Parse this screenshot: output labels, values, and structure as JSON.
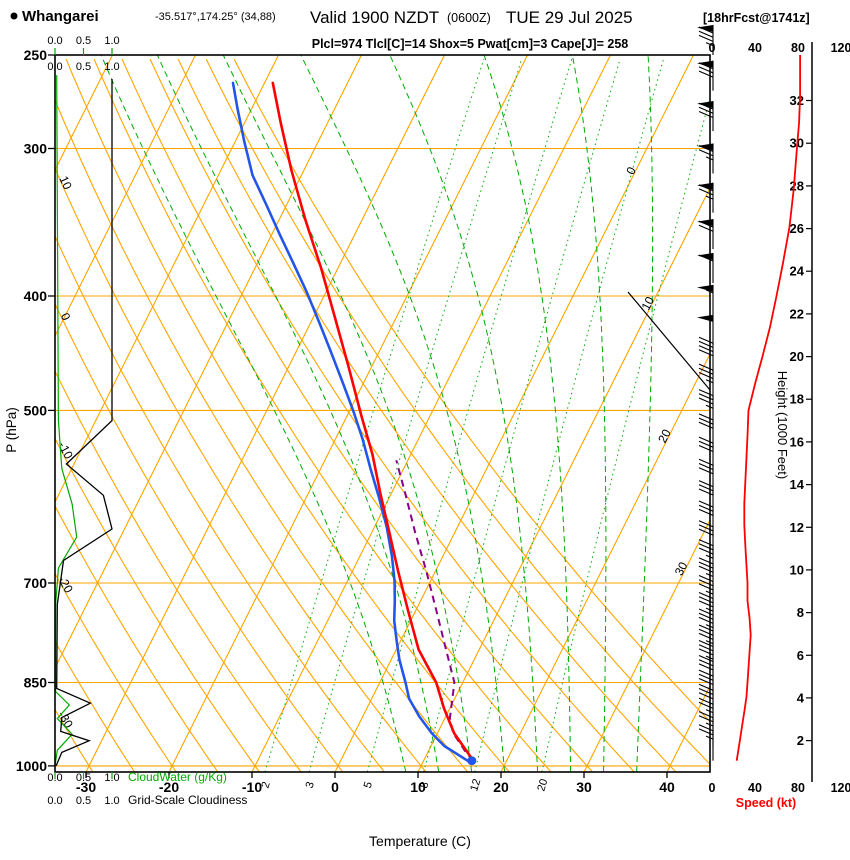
{
  "header": {
    "station": "Whangarei",
    "coords": "-35.517°,174.25° (34,88)",
    "valid_main": "Valid 1900 NZDT",
    "valid_zulu": "(0600Z)",
    "valid_date": "TUE 29 Jul 2025",
    "fcst_tag": "[18hrFcst@1741z]",
    "params_line": "Plcl=974 Tlcl[C]=14 Shox=5 Pwat[cm]=3 Cape[J]= 258"
  },
  "axes": {
    "pressure_label": "P (hPa)",
    "pressure_ticks": [
      250,
      300,
      400,
      500,
      700,
      850,
      1000
    ],
    "temp_label": "Temperature (C)",
    "temp_ticks": [
      -30,
      -20,
      -10,
      0,
      10,
      20,
      30,
      40
    ],
    "height_label": "Height (1000 Feet)",
    "height_ticks": [
      2,
      4,
      6,
      8,
      10,
      12,
      14,
      16,
      18,
      20,
      22,
      24,
      26,
      28,
      30,
      32
    ],
    "speed_label": "Speed (kt)",
    "speed_ticks": [
      0,
      40,
      80,
      120
    ],
    "cloudwater_label": "CloudWater (g/Kg)",
    "cloudiness_label": "Grid-Scale Cloudiness",
    "cloud_scale_ticks": [
      "0.0",
      "0.5",
      "1.0"
    ]
  },
  "chart_data": {
    "type": "skewt-logp-sounding",
    "pressure_range_hpa": [
      250,
      1012
    ],
    "temp_axis_range_c": [
      -33,
      45
    ],
    "isobars": [
      300,
      400,
      500,
      700,
      850,
      1000
    ],
    "isotherms": {
      "values": [
        -70,
        -60,
        -50,
        -40,
        -30,
        -20,
        -10,
        0,
        10,
        20,
        30,
        40
      ],
      "labeled": [
        0,
        10,
        20,
        30
      ]
    },
    "dry_adiabats": {
      "values": [
        -30,
        -25,
        -20,
        -15,
        -10,
        -5,
        0,
        5,
        10,
        15,
        20,
        25,
        30,
        35,
        40,
        45,
        50
      ],
      "labeled": [
        10,
        0,
        -10,
        -20,
        -30
      ]
    },
    "moist_adiabats": {
      "values": [
        8,
        12,
        16,
        20,
        24,
        28,
        32,
        36
      ]
    },
    "mixing_ratio": {
      "values": [
        2,
        3,
        5,
        8,
        12,
        20
      ]
    },
    "temperature_profile": [
      [
        990,
        16
      ],
      [
        938,
        12
      ],
      [
        894,
        9.3
      ],
      [
        850,
        6.8
      ],
      [
        797,
        2.7
      ],
      [
        739,
        -0.9
      ],
      [
        684,
        -4.5
      ],
      [
        634,
        -7.9
      ],
      [
        588,
        -11.3
      ],
      [
        545,
        -14.6
      ],
      [
        505,
        -18.3
      ],
      [
        459,
        -22.8
      ],
      [
        417,
        -27.4
      ],
      [
        379,
        -32
      ],
      [
        345,
        -36.8
      ],
      [
        313,
        -41.5
      ],
      [
        285,
        -45.7
      ],
      [
        264,
        -49
      ]
    ],
    "dewpoint_profile": [
      [
        990,
        15.3
      ],
      [
        962,
        11.6
      ],
      [
        938,
        9.3
      ],
      [
        908,
        6.8
      ],
      [
        877,
        4.5
      ],
      [
        850,
        3.1
      ],
      [
        813,
        1
      ],
      [
        783,
        -0.5
      ],
      [
        753,
        -2
      ],
      [
        725,
        -3.1
      ],
      [
        698,
        -4.3
      ],
      [
        665,
        -6.1
      ],
      [
        628,
        -8.5
      ],
      [
        593,
        -11.2
      ],
      [
        560,
        -14
      ],
      [
        529,
        -16.7
      ],
      [
        500,
        -19.6
      ],
      [
        472,
        -22.7
      ],
      [
        446,
        -25.8
      ],
      [
        421,
        -29
      ],
      [
        397,
        -32.3
      ],
      [
        375,
        -35.7
      ],
      [
        355,
        -39
      ],
      [
        335,
        -42.4
      ],
      [
        316,
        -45.9
      ],
      [
        296,
        -48.9
      ],
      [
        277,
        -51.8
      ],
      [
        264,
        -53.8
      ]
    ],
    "parcel_profile": [
      [
        990,
        16
      ],
      [
        974,
        14.6
      ],
      [
        938,
        11.9
      ],
      [
        911,
        10.6
      ],
      [
        850,
        9
      ],
      [
        797,
        6
      ],
      [
        739,
        2.5
      ],
      [
        684,
        -1.1
      ],
      [
        634,
        -4.8
      ],
      [
        588,
        -8.3
      ],
      [
        551,
        -11.4
      ]
    ],
    "surface_dot": [
      990,
      15.8
    ],
    "speed_profile": [
      [
        990,
        23
      ],
      [
        950,
        26
      ],
      [
        925,
        28
      ],
      [
        900,
        30
      ],
      [
        875,
        32
      ],
      [
        850,
        33
      ],
      [
        800,
        35
      ],
      [
        775,
        36
      ],
      [
        750,
        35
      ],
      [
        725,
        33
      ],
      [
        700,
        33
      ],
      [
        675,
        32
      ],
      [
        650,
        31
      ],
      [
        625,
        30
      ],
      [
        600,
        30
      ],
      [
        575,
        31
      ],
      [
        550,
        32
      ],
      [
        525,
        33
      ],
      [
        500,
        34
      ],
      [
        475,
        40
      ],
      [
        450,
        47
      ],
      [
        425,
        54
      ],
      [
        400,
        60
      ],
      [
        375,
        66
      ],
      [
        350,
        72
      ],
      [
        325,
        76
      ],
      [
        300,
        79
      ],
      [
        285,
        81
      ],
      [
        270,
        82
      ],
      [
        250,
        82
      ]
    ],
    "wind_barbs": [
      [
        990,
        25
      ],
      [
        965,
        25
      ],
      [
        940,
        27
      ],
      [
        915,
        29
      ],
      [
        890,
        31
      ],
      [
        865,
        32
      ],
      [
        840,
        34
      ],
      [
        815,
        35
      ],
      [
        790,
        36
      ],
      [
        765,
        36
      ],
      [
        740,
        35
      ],
      [
        715,
        34
      ],
      [
        690,
        33
      ],
      [
        665,
        32
      ],
      [
        640,
        31
      ],
      [
        615,
        30
      ],
      [
        590,
        30
      ],
      [
        565,
        31
      ],
      [
        540,
        32
      ],
      [
        515,
        33
      ],
      [
        490,
        35
      ],
      [
        465,
        42
      ],
      [
        440,
        50
      ],
      [
        415,
        57
      ],
      [
        390,
        62
      ],
      [
        365,
        68
      ],
      [
        340,
        73
      ],
      [
        315,
        77
      ],
      [
        290,
        80
      ],
      [
        268,
        82
      ],
      [
        250,
        83
      ]
    ],
    "cloudiness_profile": [
      [
        262,
        1
      ],
      [
        510,
        1
      ],
      [
        555,
        0.2
      ],
      [
        590,
        0.85
      ],
      [
        630,
        1
      ],
      [
        670,
        0.15
      ],
      [
        730,
        0.04
      ],
      [
        860,
        0.03
      ],
      [
        885,
        0.62
      ],
      [
        910,
        0.12
      ],
      [
        935,
        0.1
      ],
      [
        952,
        0.6
      ],
      [
        974,
        0.12
      ],
      [
        1000,
        0.02
      ]
    ],
    "cloudwater_profile": [
      [
        260,
        0.03
      ],
      [
        510,
        0.06
      ],
      [
        560,
        0.12
      ],
      [
        600,
        0.3
      ],
      [
        640,
        0.38
      ],
      [
        680,
        0.06
      ],
      [
        730,
        0.01
      ],
      [
        865,
        0.01
      ],
      [
        888,
        0.25
      ],
      [
        912,
        0.04
      ],
      [
        940,
        0.3
      ],
      [
        970,
        0.04
      ],
      [
        1000,
        0
      ]
    ],
    "upper_right_guide": [
      [
        628,
        292
      ],
      [
        710,
        390
      ]
    ],
    "colors": {
      "grid_orange": "#FFA500",
      "grid_green": "#00AA00",
      "temperature": "#FF0000",
      "dewpoint": "#2356E8",
      "parcel": "#880088",
      "speed": "#FF0000",
      "params_text": "#CC0077",
      "cloudiness": "#000000",
      "cloudwater": "#00AA00"
    }
  }
}
